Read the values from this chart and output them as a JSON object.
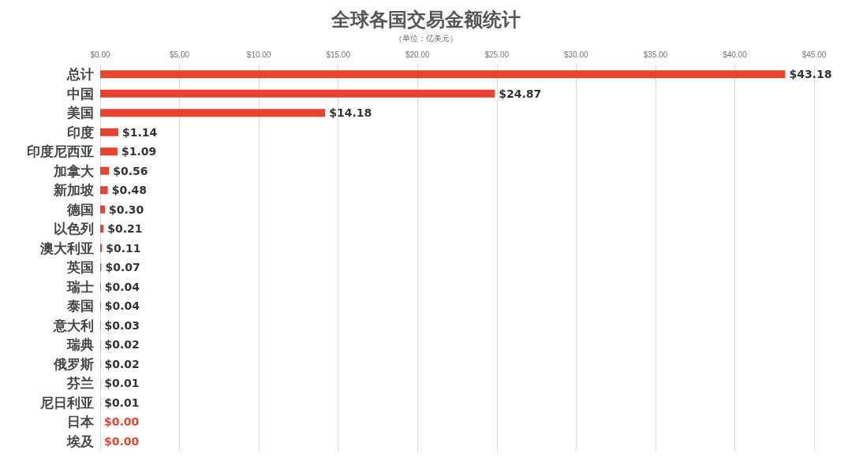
{
  "chart_data": {
    "type": "bar",
    "orientation": "horizontal",
    "title": "全球各国交易金额统计",
    "subtitle": "（单位：亿美元）",
    "categories": [
      "总计",
      "中国",
      "美国",
      "印度",
      "印度尼西亚",
      "加拿大",
      "新加坡",
      "德国",
      "以色列",
      "澳大利亚",
      "英国",
      "瑞士",
      "泰国",
      "意大利",
      "瑞典",
      "俄罗斯",
      "芬兰",
      "尼日利亚",
      "日本",
      "埃及"
    ],
    "values": [
      43.18,
      24.87,
      14.18,
      1.14,
      1.09,
      0.56,
      0.48,
      0.3,
      0.21,
      0.11,
      0.07,
      0.04,
      0.04,
      0.03,
      0.02,
      0.02,
      0.01,
      0.01,
      0.0,
      0.0
    ],
    "value_labels": [
      "$43.18",
      "$24.87",
      "$14.18",
      "$1.14",
      "$1.09",
      "$0.56",
      "$0.48",
      "$0.30",
      "$0.21",
      "$0.11",
      "$0.07",
      "$0.04",
      "$0.04",
      "$0.03",
      "$0.02",
      "$0.02",
      "$0.01",
      "$0.01",
      "$0.00",
      "$0.00"
    ],
    "color": "#e8432e",
    "xlim": [
      0,
      45
    ],
    "xticks": [
      {
        "value": 0,
        "label": "$0.00"
      },
      {
        "value": 5,
        "label": "$5.00"
      },
      {
        "value": 10,
        "label": "$10.00"
      },
      {
        "value": 15,
        "label": "$15.00"
      },
      {
        "value": 20,
        "label": "$20.00"
      },
      {
        "value": 25,
        "label": "$25.00"
      },
      {
        "value": 30,
        "label": "$30.00"
      },
      {
        "value": 35,
        "label": "$35.00"
      },
      {
        "value": 40,
        "label": "$40.00"
      },
      {
        "value": 45,
        "label": "$45.00"
      }
    ],
    "grid": "x"
  }
}
